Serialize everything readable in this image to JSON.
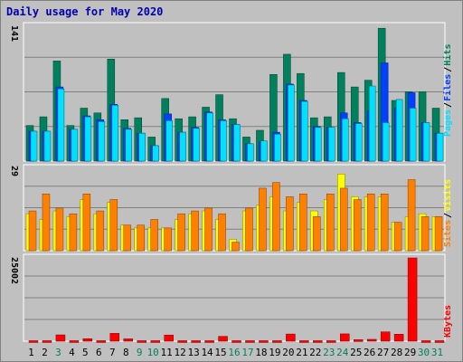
{
  "title": "Daily usage for May 2020",
  "colors": {
    "background": "#c0c0c0",
    "plot": "#c0c0c0",
    "grid": "#808080",
    "hits": "#00805c",
    "files": "#0040ff",
    "pages": "#00e0ff",
    "visits": "#ffff00",
    "sites": "#ff8000",
    "kbytes": "#ff0000",
    "day_weekday": "#000000",
    "day_weekend": "#00805c",
    "title": "#0000b0"
  },
  "chart_data": [
    {
      "type": "bar",
      "panel": "hits-files-pages",
      "ymax_label": "141",
      "ylim": [
        0,
        141
      ],
      "grid": true,
      "legend": [
        "Pages",
        "/",
        "Files",
        "/",
        "Hits"
      ],
      "legend_placement": "right",
      "categories": [
        "1",
        "2",
        "3",
        "4",
        "5",
        "6",
        "7",
        "8",
        "9",
        "10",
        "11",
        "12",
        "13",
        "14",
        "15",
        "16",
        "17",
        "18",
        "19",
        "20",
        "21",
        "22",
        "23",
        "24",
        "25",
        "26",
        "27",
        "28",
        "29",
        "30",
        "31"
      ],
      "series": [
        {
          "name": "Hits",
          "values": [
            37,
            46,
            104,
            37,
            55,
            50,
            106,
            43,
            45,
            25,
            65,
            44,
            46,
            56,
            69,
            44,
            25,
            32,
            90,
            111,
            91,
            45,
            46,
            92,
            77,
            84,
            138,
            63,
            72,
            72,
            55
          ]
        },
        {
          "name": "Files",
          "values": [
            31,
            31,
            77,
            33,
            47,
            43,
            59,
            34,
            29,
            16,
            49,
            30,
            35,
            51,
            43,
            38,
            18,
            20,
            30,
            80,
            63,
            36,
            35,
            50,
            40,
            52,
            102,
            55,
            71,
            40,
            29
          ]
        },
        {
          "name": "Pages",
          "values": [
            31,
            31,
            75,
            33,
            46,
            41,
            58,
            33,
            29,
            16,
            42,
            30,
            34,
            50,
            42,
            38,
            18,
            21,
            28,
            79,
            62,
            35,
            35,
            44,
            39,
            78,
            40,
            64,
            55,
            40,
            29
          ]
        }
      ]
    },
    {
      "type": "bar",
      "panel": "visits-sites",
      "ymax_label": "29",
      "ylim": [
        0,
        29
      ],
      "grid": true,
      "legend": [
        "Sites",
        "/",
        "Visits"
      ],
      "legend_placement": "right",
      "series": [
        {
          "name": "Visits",
          "values": [
            13,
            11,
            14,
            12,
            18,
            13,
            17,
            9,
            8,
            8,
            8,
            11,
            13,
            14,
            11,
            4,
            14,
            16,
            19,
            14,
            17,
            14,
            18,
            27,
            19,
            19,
            19,
            10,
            12,
            13,
            12
          ]
        },
        {
          "name": "Sites",
          "values": [
            14,
            20,
            15,
            13,
            20,
            14,
            18,
            9,
            9,
            11,
            8,
            13,
            14,
            15,
            13,
            3,
            15,
            22,
            24,
            19,
            20,
            12,
            20,
            22,
            18,
            20,
            20,
            10,
            25,
            12,
            12
          ]
        }
      ]
    },
    {
      "type": "bar",
      "panel": "kbytes",
      "ymax_label": "25002",
      "ylim": [
        0,
        25002
      ],
      "grid": true,
      "legend": [
        "KBytes"
      ],
      "legend_placement": "right",
      "series": [
        {
          "name": "KBytes",
          "values": [
            150,
            150,
            1900,
            150,
            750,
            150,
            2350,
            700,
            150,
            150,
            1850,
            150,
            150,
            150,
            1450,
            150,
            150,
            150,
            150,
            2150,
            150,
            150,
            150,
            2200,
            450,
            550,
            2800,
            2100,
            25002,
            150,
            150
          ]
        }
      ]
    }
  ]
}
